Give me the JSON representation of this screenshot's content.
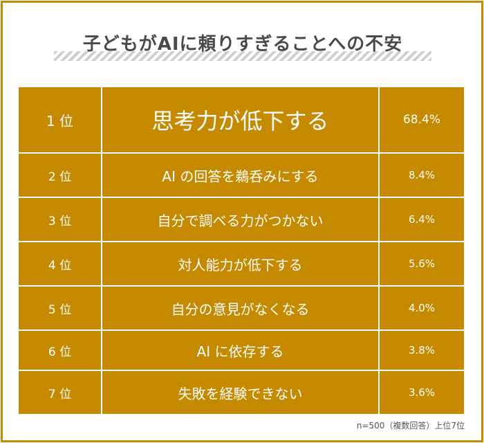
{
  "title": "子どもがAIに頼りすぎることへの不安",
  "note": "n=500（複数回答）上位7位",
  "colors": {
    "accent": "#c68a00",
    "text_on_accent": "#ffffff",
    "title": "#4a4a4a"
  },
  "chart_data": {
    "type": "table",
    "title": "子どもがAIに頼りすぎることへの不安",
    "rows": [
      {
        "rank": "1 位",
        "label": "思考力が低下する",
        "value": 68.4,
        "value_label": "68.4%"
      },
      {
        "rank": "2 位",
        "label": "AI の回答を鵜呑みにする",
        "value": 8.4,
        "value_label": "8.4%"
      },
      {
        "rank": "3 位",
        "label": "自分で調べる力がつかない",
        "value": 6.4,
        "value_label": "6.4%"
      },
      {
        "rank": "4 位",
        "label": "対人能力が低下する",
        "value": 5.6,
        "value_label": "5.6%"
      },
      {
        "rank": "5 位",
        "label": "自分の意見がなくなる",
        "value": 4.0,
        "value_label": "4.0%"
      },
      {
        "rank": "6 位",
        "label": "AI に依存する",
        "value": 3.8,
        "value_label": "3.8%"
      },
      {
        "rank": "7 位",
        "label": "失敗を経験できない",
        "value": 3.6,
        "value_label": "3.6%"
      }
    ]
  }
}
